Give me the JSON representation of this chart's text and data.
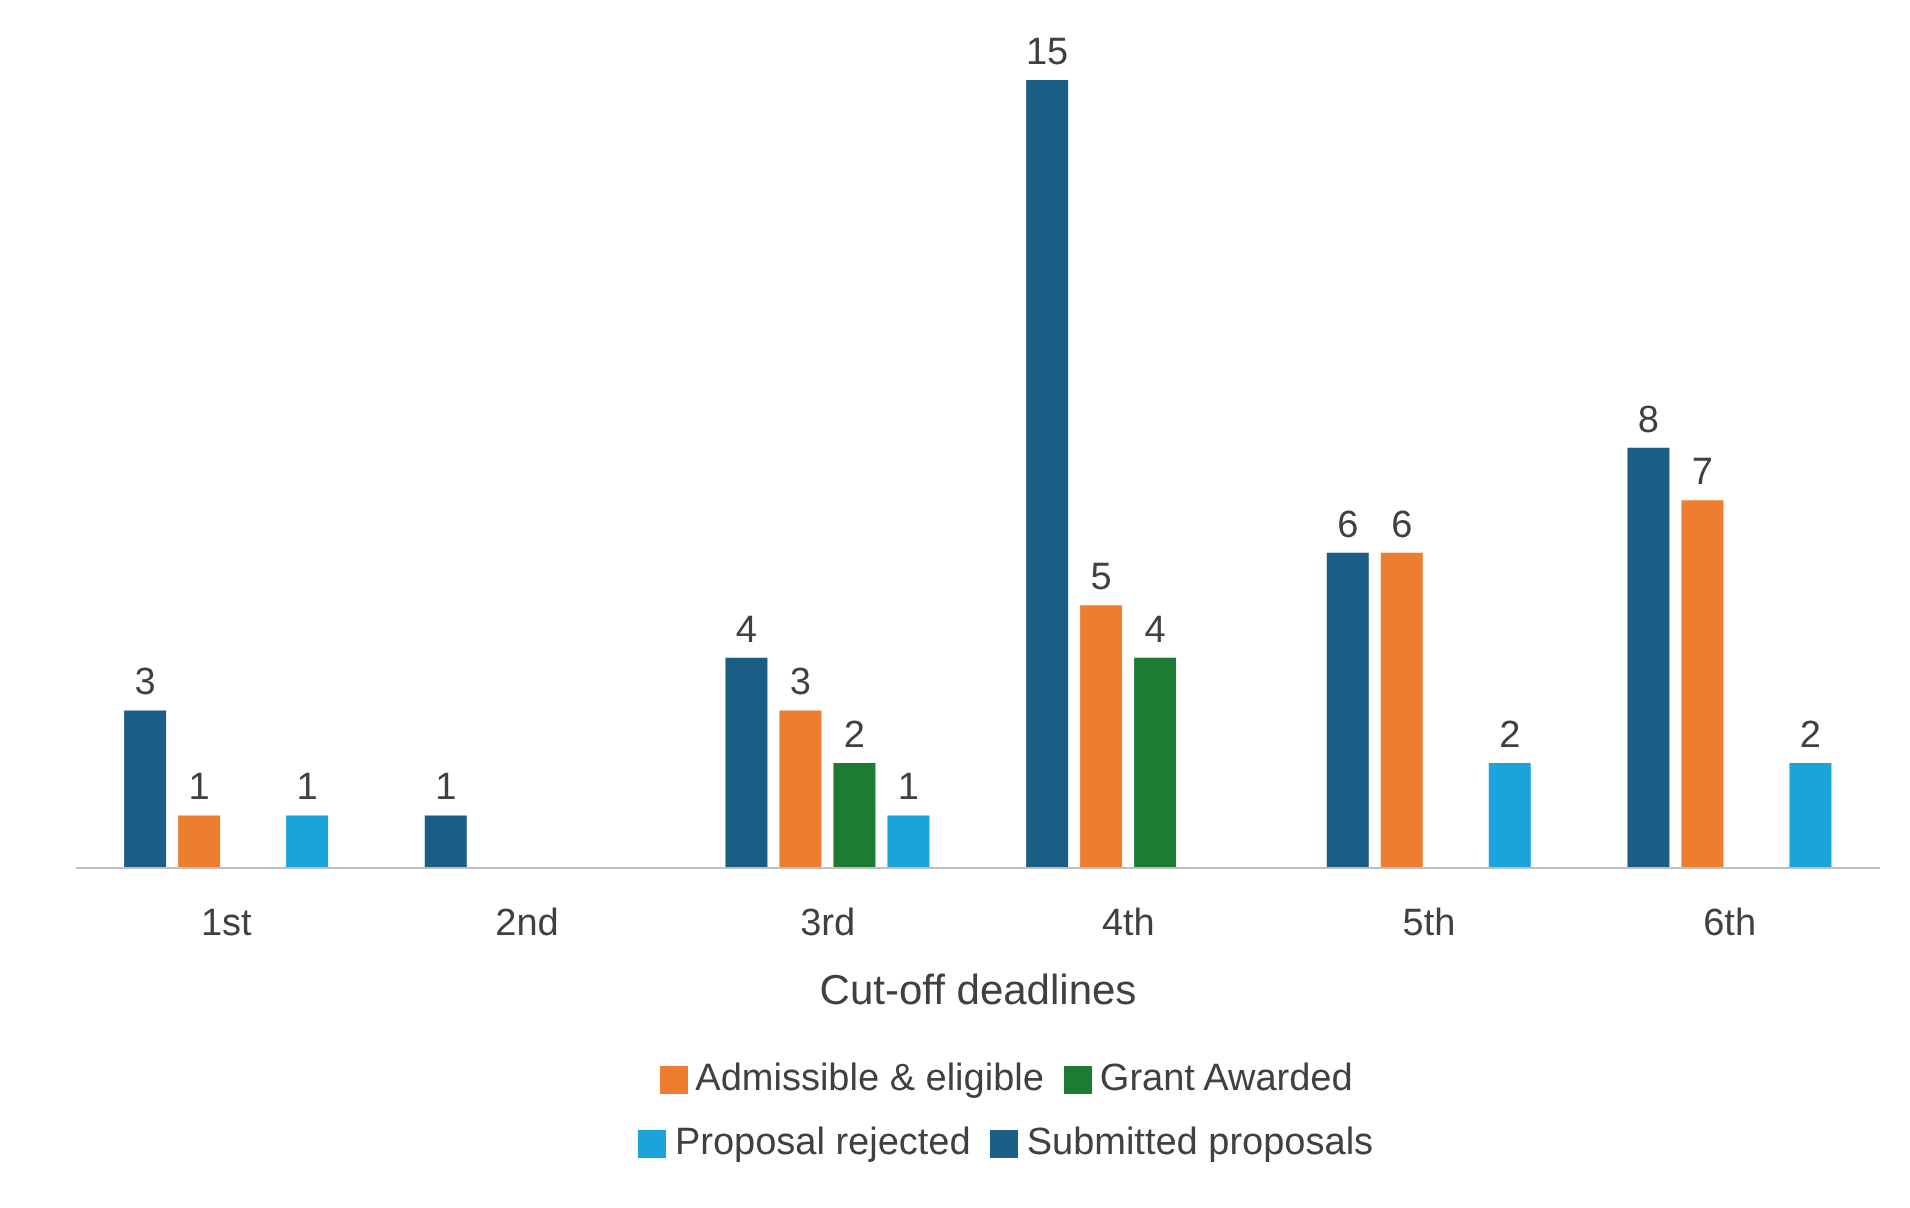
{
  "chart_data": {
    "type": "bar",
    "xlabel": "Cut-off deadlines",
    "categories": [
      "1st",
      "2nd",
      "3rd",
      "4th",
      "5th",
      "6th"
    ],
    "series": [
      {
        "name": "Submitted proposals",
        "color": "#1a5e85",
        "values": [
          3,
          1,
          4,
          15,
          6,
          8
        ]
      },
      {
        "name": "Admissible & eligible",
        "color": "#ed7d31",
        "values": [
          1,
          null,
          3,
          5,
          6,
          7
        ]
      },
      {
        "name": "Grant Awarded",
        "color": "#1e7b34",
        "values": [
          null,
          null,
          2,
          4,
          null,
          null
        ]
      },
      {
        "name": "Proposal rejected",
        "color": "#1ba3dc",
        "values": [
          1,
          null,
          1,
          null,
          2,
          2
        ]
      }
    ],
    "data_labels": true,
    "grid": false,
    "legend": "bottom"
  }
}
